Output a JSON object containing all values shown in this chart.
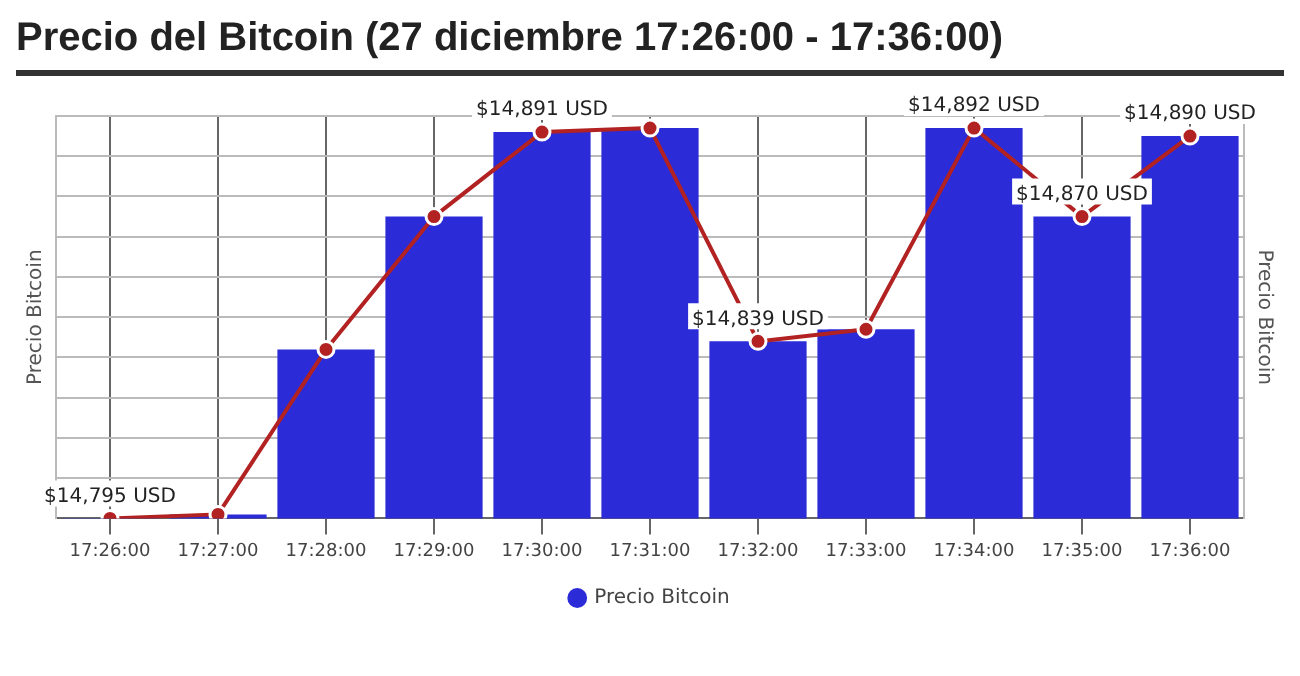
{
  "chart_data": {
    "type": "bar",
    "title": "Precio del Bitcoin (27 diciembre 17:26:00 - 17:36:00)",
    "ylabel": "Precio Bitcoin",
    "y2label": "Precio Bitcoin",
    "categories": [
      "17:26:00",
      "17:27:00",
      "17:28:00",
      "17:29:00",
      "17:30:00",
      "17:31:00",
      "17:32:00",
      "17:33:00",
      "17:34:00",
      "17:35:00",
      "17:36:00"
    ],
    "series": [
      {
        "name": "Precio Bitcoin",
        "color": "#2b2bd8",
        "values": [
          14795,
          14796,
          14837,
          14870,
          14891,
          14892,
          14839,
          14842,
          14892,
          14870,
          14890
        ]
      },
      {
        "type": "line",
        "color": "#b22222",
        "marker": "circle",
        "values": [
          14795,
          14796,
          14837,
          14870,
          14891,
          14892,
          14839,
          14842,
          14892,
          14870,
          14890
        ],
        "value_labels": [
          "$14,795 USD",
          null,
          null,
          null,
          "$14,891 USD",
          null,
          "$14,839 USD",
          null,
          "$14,892 USD",
          "$14,870 USD",
          "$14,890 USD"
        ]
      }
    ],
    "ylim": [
      14795,
      14895
    ],
    "yticks": [
      {
        "value": 14795,
        "label": null
      },
      {
        "value": 14805,
        "label": null
      },
      {
        "value": 14815,
        "label": null
      },
      {
        "value": 14825,
        "label": null
      },
      {
        "value": 14835,
        "label": null
      },
      {
        "value": 14845,
        "label": null
      },
      {
        "value": 14855,
        "label": null
      },
      {
        "value": 14865,
        "label": null
      },
      {
        "value": 14875,
        "label": null
      },
      {
        "value": 14885,
        "label": null
      },
      {
        "value": 14895,
        "label": null
      }
    ],
    "tick_labels": "x",
    "grid": true,
    "legend": "bottom"
  }
}
